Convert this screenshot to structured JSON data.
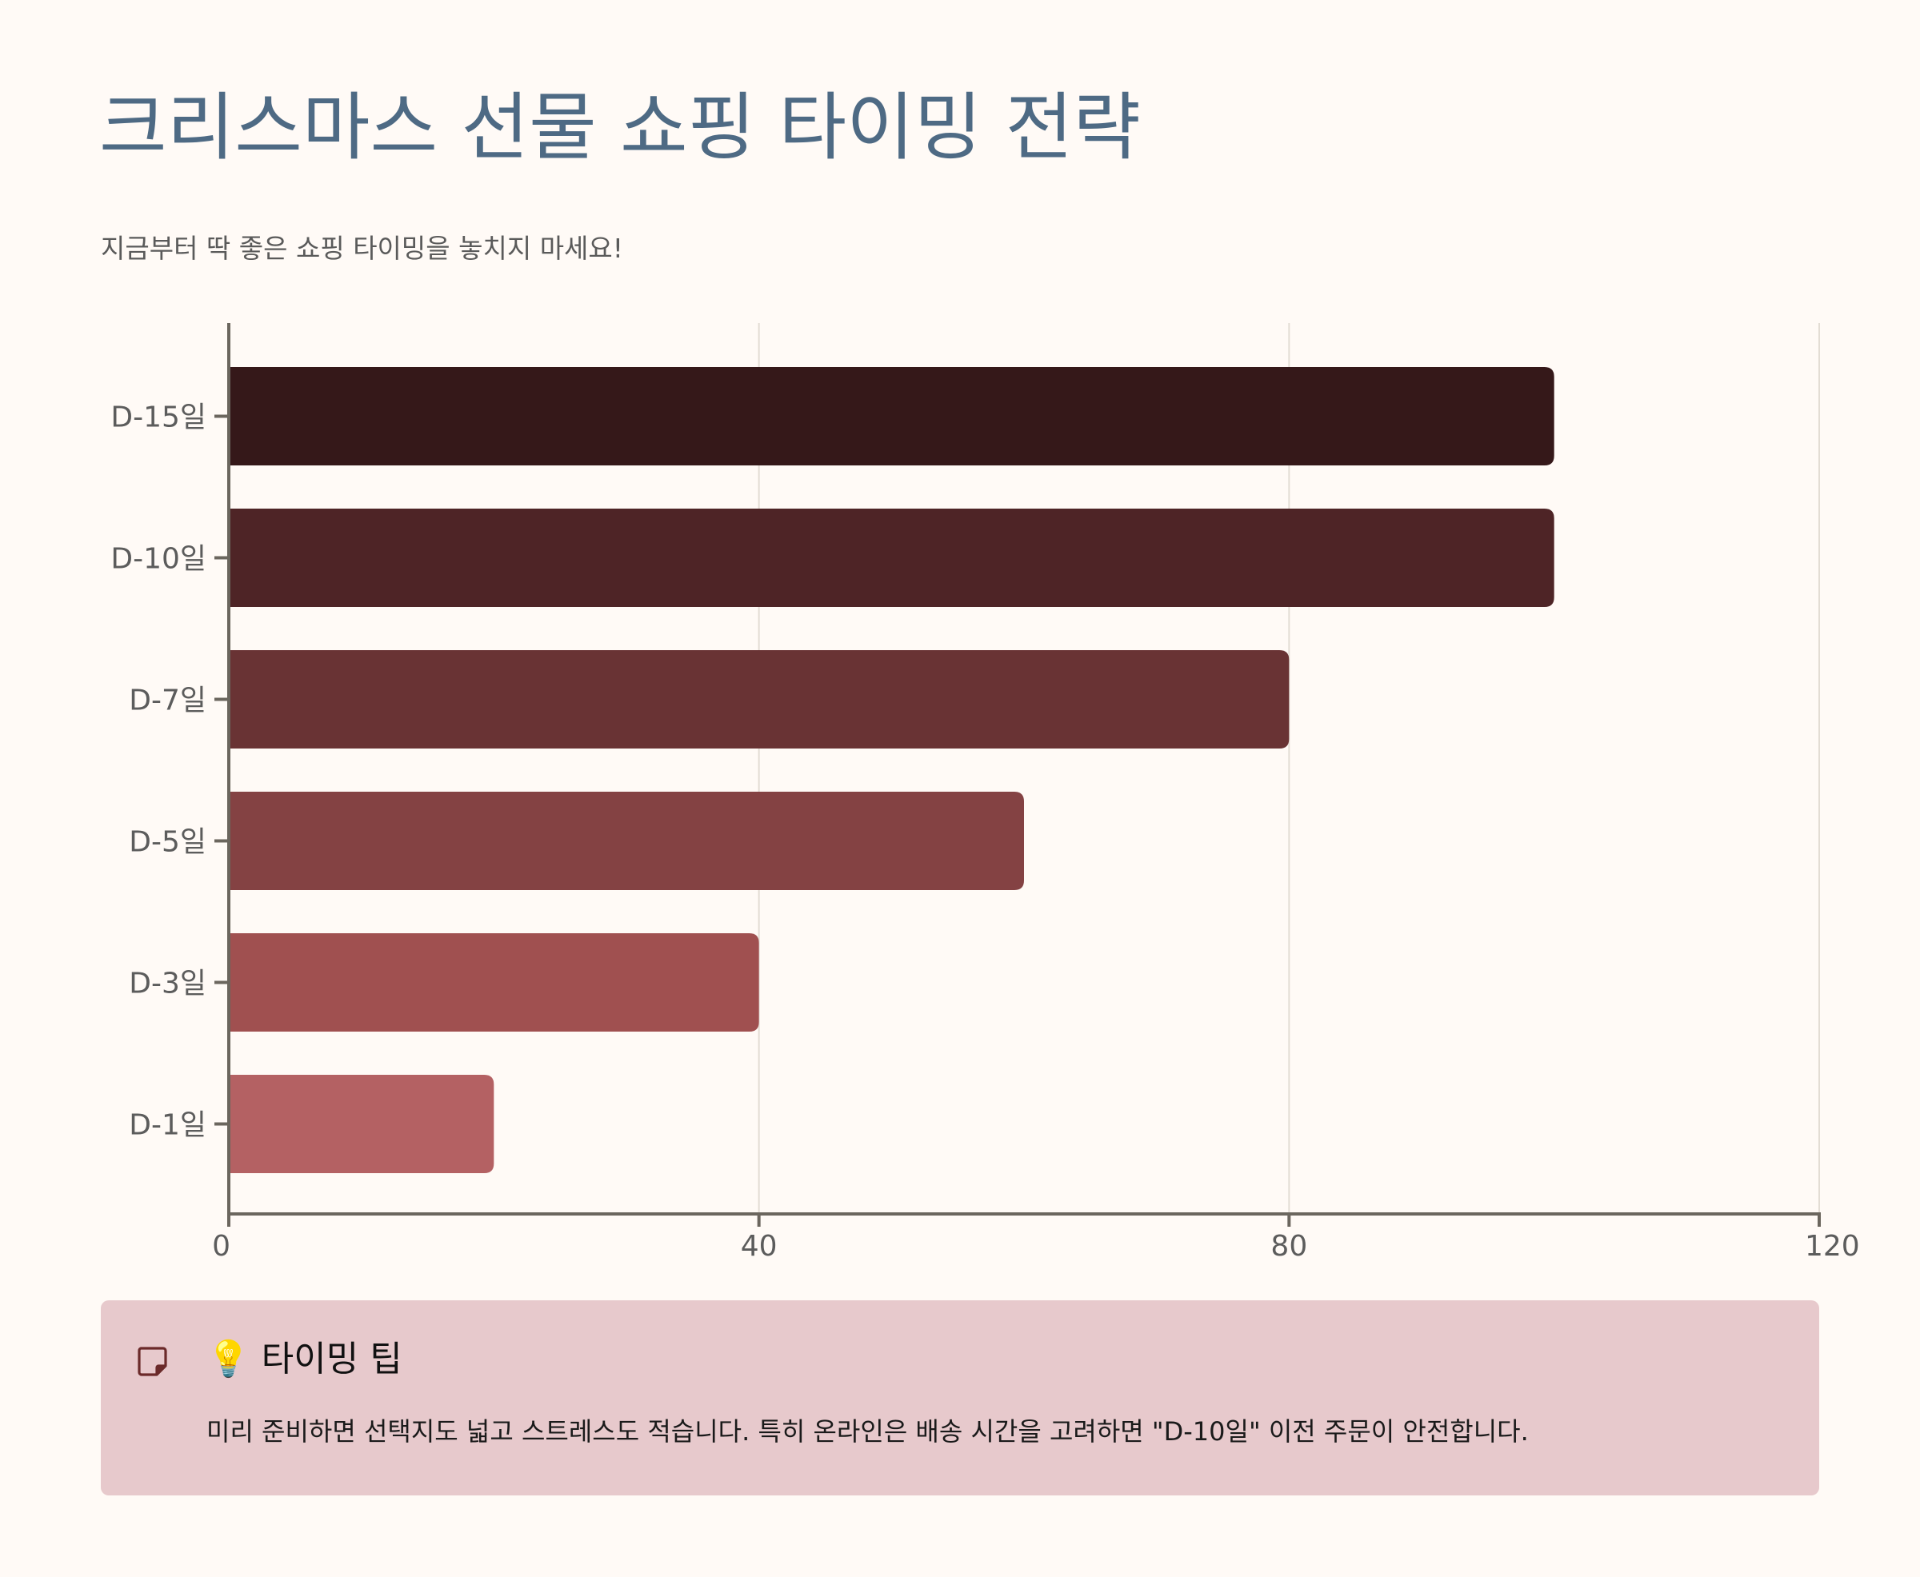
{
  "header": {
    "title": "크리스마스 선물 쇼핑 타이밍 전략",
    "subtitle": "지금부터 딱 좋은 쇼핑 타이밍을 놓치지 마세요!"
  },
  "chart_data": {
    "type": "bar",
    "orientation": "horizontal",
    "categories": [
      "D-15일",
      "D-10일",
      "D-7일",
      "D-5일",
      "D-3일",
      "D-1일"
    ],
    "values": [
      100,
      100,
      80,
      60,
      40,
      20
    ],
    "colors": [
      "#351819",
      "#4e2426",
      "#693334",
      "#844243",
      "#a05050",
      "#b46163"
    ],
    "xlim": [
      0,
      120
    ],
    "xticks": [
      0,
      40,
      80,
      120
    ],
    "grid": "vertical",
    "legend": "none"
  },
  "tip": {
    "icon": "sticky-note-icon",
    "bulb": "💡",
    "title": "타이밍 팁",
    "text": "미리 준비하면 선택지도 넓고 스트레스도 적습니다. 특히 온라인은 배송 시간을 고려하면 \"D-10일\" 이전 주문이 안전합니다."
  },
  "colors": {
    "background": "#fffaf6",
    "title": "#4e6a84",
    "axis": "#6b665e",
    "grid": "#e3ddd4",
    "tip_background": "#e7c9cc",
    "tip_icon": "#6b2a2a"
  }
}
